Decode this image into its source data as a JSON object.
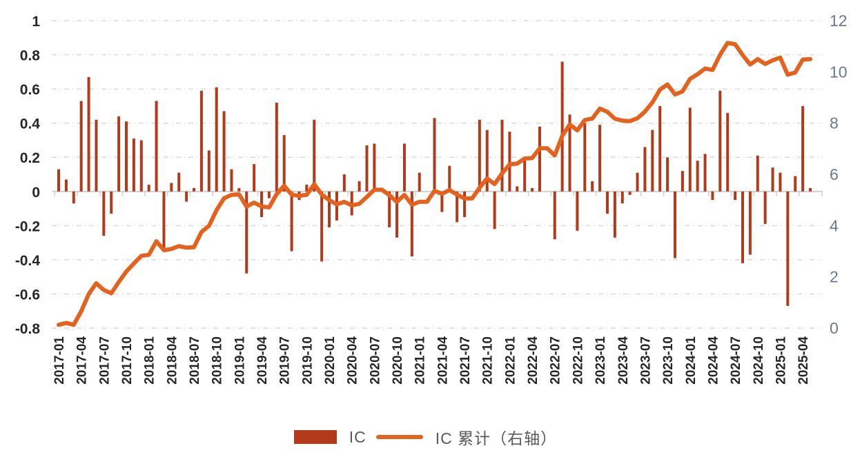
{
  "chart_data": {
    "type": "bar",
    "subtype": "bar-line-combo",
    "title": "",
    "xlabel": "",
    "ylabel_left": "",
    "ylabel_right": "",
    "grid": "horizontal-dash-dot",
    "legend_position": "bottom-center",
    "x": [
      "2017-01",
      "2017-02",
      "2017-03",
      "2017-04",
      "2017-05",
      "2017-06",
      "2017-07",
      "2017-08",
      "2017-09",
      "2017-10",
      "2017-11",
      "2017-12",
      "2018-01",
      "2018-02",
      "2018-03",
      "2018-04",
      "2018-05",
      "2018-06",
      "2018-07",
      "2018-08",
      "2018-09",
      "2018-10",
      "2018-11",
      "2018-12",
      "2019-01",
      "2019-02",
      "2019-03",
      "2019-04",
      "2019-05",
      "2019-06",
      "2019-07",
      "2019-08",
      "2019-09",
      "2019-10",
      "2019-11",
      "2019-12",
      "2020-01",
      "2020-02",
      "2020-03",
      "2020-04",
      "2020-05",
      "2020-06",
      "2020-07",
      "2020-08",
      "2020-09",
      "2020-10",
      "2020-11",
      "2020-12",
      "2021-01",
      "2021-02",
      "2021-03",
      "2021-04",
      "2021-05",
      "2021-06",
      "2021-07",
      "2021-08",
      "2021-09",
      "2021-10",
      "2021-11",
      "2021-12",
      "2022-01",
      "2022-02",
      "2022-03",
      "2022-04",
      "2022-05",
      "2022-06",
      "2022-07",
      "2022-08",
      "2022-09",
      "2022-10",
      "2022-11",
      "2022-12",
      "2023-01",
      "2023-02",
      "2023-03",
      "2023-04",
      "2023-05",
      "2023-06",
      "2023-07",
      "2023-08",
      "2023-09",
      "2023-10",
      "2023-11",
      "2023-12",
      "2024-01",
      "2024-02",
      "2024-03",
      "2024-04",
      "2024-05",
      "2024-06",
      "2024-07",
      "2024-08",
      "2024-09",
      "2024-10",
      "2024-11",
      "2024-12",
      "2025-01",
      "2025-02",
      "2025-03",
      "2025-04",
      "2025-05"
    ],
    "x_tick_labels": [
      "2017-01",
      "2017-04",
      "2017-07",
      "2017-10",
      "2018-01",
      "2018-04",
      "2018-07",
      "2018-10",
      "2019-01",
      "2019-04",
      "2019-07",
      "2019-10",
      "2020-01",
      "2020-04",
      "2020-07",
      "2020-10",
      "2021-01",
      "2021-04",
      "2021-07",
      "2021-10",
      "2022-01",
      "2022-04",
      "2022-07",
      "2022-10",
      "2023-01",
      "2023-04",
      "2023-07",
      "2023-10",
      "2024-01",
      "2024-04",
      "2024-07",
      "2024-10",
      "2025-01",
      "2025-04"
    ],
    "left_axis": {
      "min": -0.8,
      "max": 1,
      "tick_labels": [
        "1",
        "0.8",
        "0.6",
        "0.4",
        "0.2",
        "0",
        "-0.2",
        "-0.4",
        "-0.6",
        "-0.8"
      ],
      "tick_values": [
        1,
        0.8,
        0.6,
        0.4,
        0.2,
        0,
        -0.2,
        -0.4,
        -0.6,
        -0.8
      ]
    },
    "right_axis": {
      "min": 0,
      "max": 12,
      "tick_labels": [
        "12",
        "10",
        "8",
        "6",
        "4",
        "2",
        "0"
      ],
      "tick_values": [
        12,
        10,
        8,
        6,
        4,
        2,
        0
      ]
    },
    "series": [
      {
        "name": "IC",
        "type": "bar",
        "axis": "left",
        "color": "#B23A1A",
        "values": [
          0.13,
          0.07,
          -0.07,
          0.53,
          0.67,
          0.42,
          -0.26,
          -0.13,
          0.44,
          0.41,
          0.31,
          0.3,
          0.04,
          0.53,
          -0.35,
          0.05,
          0.11,
          -0.06,
          0.02,
          0.59,
          0.24,
          0.61,
          0.47,
          0.13,
          0.02,
          -0.48,
          0.16,
          -0.15,
          -0.04,
          0.52,
          0.33,
          -0.35,
          -0.05,
          0.04,
          0.42,
          -0.41,
          -0.21,
          -0.17,
          0.1,
          -0.14,
          0.06,
          0.27,
          0.28,
          0.0,
          -0.21,
          -0.27,
          0.28,
          -0.38,
          0.11,
          0.0,
          0.43,
          -0.12,
          0.15,
          -0.18,
          -0.15,
          0.0,
          0.42,
          0.36,
          -0.22,
          0.42,
          0.35,
          0.03,
          0.2,
          0.02,
          0.38,
          0.0,
          -0.28,
          0.76,
          0.45,
          -0.23,
          0.4,
          0.06,
          0.39,
          -0.13,
          -0.27,
          -0.07,
          -0.02,
          0.11,
          0.26,
          0.36,
          0.5,
          0.2,
          -0.39,
          0.12,
          0.49,
          0.18,
          0.22,
          -0.05,
          0.59,
          0.46,
          -0.05,
          -0.42,
          -0.37,
          0.21,
          -0.19,
          0.14,
          0.11,
          -0.67,
          0.09,
          0.5,
          0.02
        ]
      },
      {
        "name": "IC 累计（右轴）",
        "type": "line",
        "axis": "right",
        "color": "#E2621E",
        "values": [
          0.13,
          0.2,
          0.13,
          0.66,
          1.33,
          1.75,
          1.49,
          1.36,
          1.8,
          2.21,
          2.52,
          2.82,
          2.86,
          3.39,
          3.04,
          3.09,
          3.2,
          3.14,
          3.16,
          3.75,
          3.99,
          4.6,
          5.07,
          5.2,
          5.22,
          4.74,
          4.9,
          4.75,
          4.71,
          5.23,
          5.56,
          5.21,
          5.16,
          5.2,
          5.62,
          5.21,
          5.0,
          4.83,
          4.93,
          4.79,
          4.85,
          5.12,
          5.4,
          5.4,
          5.19,
          4.92,
          5.2,
          4.82,
          4.93,
          4.93,
          5.36,
          5.24,
          5.39,
          5.21,
          5.06,
          5.06,
          5.48,
          5.84,
          5.62,
          6.04,
          6.39,
          6.42,
          6.62,
          6.64,
          7.02,
          7.02,
          6.74,
          7.5,
          7.95,
          7.72,
          8.12,
          8.18,
          8.57,
          8.44,
          8.17,
          8.1,
          8.08,
          8.19,
          8.45,
          8.81,
          9.31,
          9.51,
          9.12,
          9.24,
          9.73,
          9.91,
          10.13,
          10.08,
          10.67,
          11.13,
          11.08,
          10.66,
          10.29,
          10.5,
          10.31,
          10.45,
          10.56,
          9.89,
          9.98,
          10.48,
          10.5
        ]
      }
    ]
  },
  "legend": {
    "bar_label": "IC",
    "line_label": "IC 累计（右轴）"
  },
  "colors": {
    "bar": "#B23A1A",
    "line": "#E2621E",
    "gridline": "#d9d9d9",
    "axis_line": "#cfcfcf",
    "left_tick_text": "#262626",
    "right_tick_text": "#697a8e",
    "x_tick_text": "#262626",
    "legend_text": "#595959"
  }
}
